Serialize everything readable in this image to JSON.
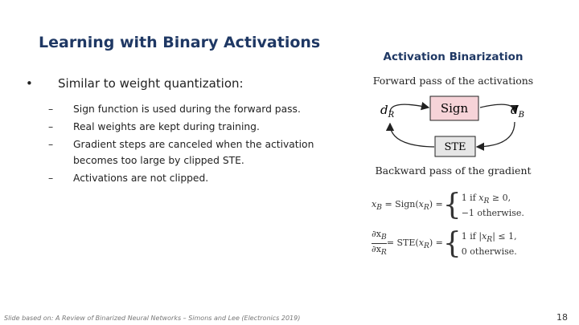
{
  "slide": {
    "title": "Learning with Binary Activations",
    "bullet": "Similar to weight quantization:",
    "sub_bullets": [
      "Sign function is used during the forward pass.",
      "Real weights are kept during training.",
      "Gradient steps are canceled when the activation becomes too large by clipped STE.",
      "Activations are not clipped."
    ],
    "figure": {
      "title": "Activation Binarization",
      "forward_caption": "Forward pass of the activations",
      "input": {
        "var": "d",
        "sub": "R"
      },
      "output": {
        "var": "d",
        "sub": "B"
      },
      "forward_op": "Sign",
      "backward_op": "STE",
      "backward_caption": "Backward pass of the gradient"
    },
    "equations": [
      {
        "lhs": [
          "x",
          "B",
          " = Sign(",
          "x",
          "R",
          ") ="
        ],
        "cases": [
          [
            "1 if ",
            "x",
            "R",
            " ≥ 0,"
          ],
          [
            "−1 otherwise."
          ]
        ]
      },
      {
        "num": [
          "∂x",
          "B"
        ],
        "den": [
          "∂x",
          "R"
        ],
        "lhs": [
          " = STE(",
          "x",
          "R",
          ") ="
        ],
        "cases": [
          [
            "1 if |",
            "x",
            "R",
            "| ≤ 1,"
          ],
          [
            "0 otherwise."
          ]
        ]
      }
    ],
    "footer": "Slide based on: A Review of Binarized Neural Networks – Simons and Lee (Electronics 2019)",
    "page_number": "18"
  }
}
